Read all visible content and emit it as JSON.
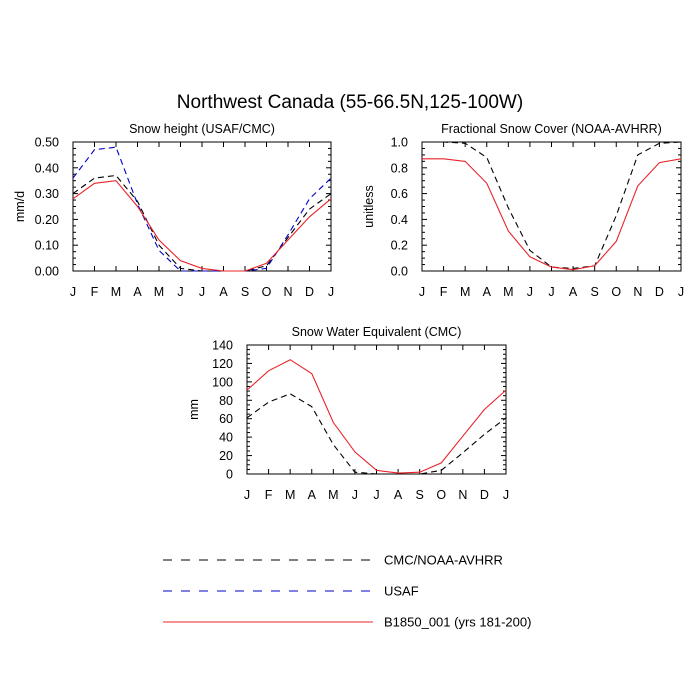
{
  "figure": {
    "title": "Northwest Canada (55-66.5N,125-100W)"
  },
  "legend": {
    "entries": [
      {
        "label": "CMC/NOAA-AVHRR",
        "color": "#000000",
        "dash": "dashed"
      },
      {
        "label": "USAF",
        "color": "#0000cc",
        "dash": "dashed"
      },
      {
        "label": "B1850_001 (yrs 181-200)",
        "color": "#e8242a",
        "dash": "solid"
      }
    ]
  },
  "chart_data": [
    {
      "type": "line",
      "title": "Snow height (USAF/CMC)",
      "ylabel": "mm/d",
      "xlabel": "",
      "categories": [
        "J",
        "F",
        "M",
        "A",
        "M",
        "J",
        "J",
        "A",
        "S",
        "O",
        "N",
        "D",
        "J"
      ],
      "ylim": [
        0,
        0.5
      ],
      "yticks": [
        "0.00",
        "0.10",
        "0.20",
        "0.30",
        "0.40",
        "0.50"
      ],
      "series": [
        {
          "name": "CMC/NOAA-AVHRR",
          "color": "#000000",
          "dash": "dashed",
          "values": [
            0.3,
            0.36,
            0.37,
            0.27,
            0.1,
            0.01,
            0.0,
            0.0,
            0.0,
            0.02,
            0.13,
            0.24,
            0.3
          ]
        },
        {
          "name": "USAF",
          "color": "#0000cc",
          "dash": "dashed",
          "values": [
            0.36,
            0.47,
            0.48,
            0.26,
            0.08,
            0.0,
            0.0,
            0.0,
            0.0,
            0.01,
            0.14,
            0.28,
            0.36
          ]
        },
        {
          "name": "B1850_001 (yrs 181-200)",
          "color": "#e8242a",
          "dash": "solid",
          "values": [
            0.28,
            0.34,
            0.35,
            0.25,
            0.12,
            0.04,
            0.01,
            0.0,
            0.0,
            0.03,
            0.12,
            0.21,
            0.28
          ]
        }
      ]
    },
    {
      "type": "line",
      "title": "Fractional Snow Cover (NOAA-AVHRR)",
      "ylabel": "unitless",
      "xlabel": "",
      "categories": [
        "J",
        "F",
        "M",
        "A",
        "M",
        "J",
        "J",
        "A",
        "S",
        "O",
        "N",
        "D",
        "J"
      ],
      "ylim": [
        0,
        1.0
      ],
      "yticks": [
        "0.0",
        "0.2",
        "0.4",
        "0.6",
        "0.8",
        "1.0"
      ],
      "series": [
        {
          "name": "CMC/NOAA-AVHRR",
          "color": "#000000",
          "dash": "dashed",
          "values": [
            1.0,
            1.0,
            0.99,
            0.88,
            0.49,
            0.16,
            0.03,
            0.02,
            0.04,
            0.43,
            0.9,
            0.99,
            1.0
          ]
        },
        {
          "name": "B1850_001 (yrs 181-200)",
          "color": "#e8242a",
          "dash": "solid",
          "values": [
            0.87,
            0.87,
            0.85,
            0.68,
            0.31,
            0.11,
            0.03,
            0.01,
            0.04,
            0.23,
            0.66,
            0.84,
            0.87
          ]
        }
      ]
    },
    {
      "type": "line",
      "title": "Snow Water Equivalent (CMC)",
      "ylabel": "mm",
      "xlabel": "",
      "categories": [
        "J",
        "F",
        "M",
        "A",
        "M",
        "J",
        "J",
        "A",
        "S",
        "O",
        "N",
        "D",
        "J"
      ],
      "ylim": [
        0,
        140
      ],
      "yticks": [
        "0",
        "20",
        "40",
        "60",
        "80",
        "100",
        "120",
        "140"
      ],
      "series": [
        {
          "name": "CMC/NOAA-AVHRR",
          "color": "#000000",
          "dash": "dashed",
          "values": [
            61,
            78,
            87,
            73,
            32,
            2,
            0,
            0,
            0,
            4,
            23,
            43,
            61
          ]
        },
        {
          "name": "B1850_001 (yrs 181-200)",
          "color": "#e8242a",
          "dash": "solid",
          "values": [
            91,
            112,
            124,
            109,
            56,
            24,
            4,
            1,
            2,
            12,
            41,
            70,
            91
          ]
        }
      ]
    }
  ]
}
